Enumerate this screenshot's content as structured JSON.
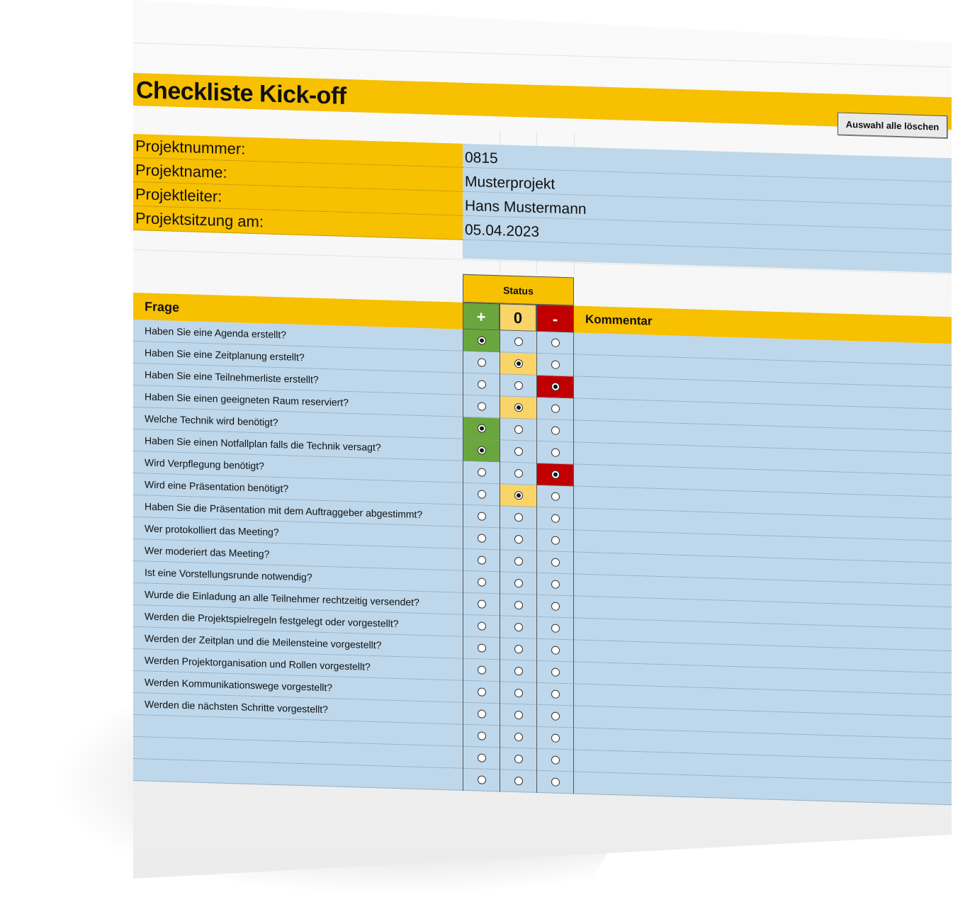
{
  "title": "Checkliste Kick-off",
  "clear_button": "Auswahl alle löschen",
  "project_info": [
    {
      "label": "Projektnummer:",
      "value": "0815"
    },
    {
      "label": "Projektname:",
      "value": "Musterprojekt"
    },
    {
      "label": "Projektleiter:",
      "value": "Hans Mustermann"
    },
    {
      "label": "Projektsitzung am:",
      "value": "05.04.2023"
    }
  ],
  "table": {
    "status_header": "Status",
    "question_header": "Frage",
    "comment_header": "Kommentar",
    "status_symbols": [
      "+",
      "0",
      "-"
    ]
  },
  "rows": [
    {
      "question": "Haben Sie eine Agenda erstellt?",
      "selected": 0,
      "comment": ""
    },
    {
      "question": "Haben Sie eine Zeitplanung erstellt?",
      "selected": 1,
      "comment": ""
    },
    {
      "question": "Haben Sie eine Teilnehmerliste erstellt?",
      "selected": 2,
      "comment": ""
    },
    {
      "question": "Haben Sie einen geeigneten Raum reserviert?",
      "selected": 1,
      "comment": ""
    },
    {
      "question": "Welche Technik wird benötigt?",
      "selected": 0,
      "comment": ""
    },
    {
      "question": "Haben Sie einen Notfallplan falls die Technik versagt?",
      "selected": 0,
      "comment": ""
    },
    {
      "question": "Wird Verpflegung benötigt?",
      "selected": 2,
      "comment": ""
    },
    {
      "question": "Wird eine Präsentation benötigt?",
      "selected": 1,
      "comment": ""
    },
    {
      "question": "Haben Sie die Präsentation mit dem Auftraggeber abgestimmt?",
      "selected": null,
      "comment": ""
    },
    {
      "question": "Wer protokolliert das Meeting?",
      "selected": null,
      "comment": ""
    },
    {
      "question": "Wer moderiert das Meeting?",
      "selected": null,
      "comment": ""
    },
    {
      "question": "Ist eine Vorstellungsrunde notwendig?",
      "selected": null,
      "comment": ""
    },
    {
      "question": "Wurde die Einladung an alle Teilnehmer rechtzeitig versendet?",
      "selected": null,
      "comment": ""
    },
    {
      "question": "Werden die Projektspielregeln festgelegt oder vorgestellt?",
      "selected": null,
      "comment": ""
    },
    {
      "question": "Werden der Zeitplan und die Meilensteine vorgestellt?",
      "selected": null,
      "comment": ""
    },
    {
      "question": "Werden Projektorganisation und Rollen vorgestellt?",
      "selected": null,
      "comment": ""
    },
    {
      "question": "Werden Kommunikationswege vorgestellt?",
      "selected": null,
      "comment": ""
    },
    {
      "question": "Werden die nächsten Schritte vorgestellt?",
      "selected": null,
      "comment": ""
    },
    {
      "question": "",
      "selected": null,
      "comment": ""
    },
    {
      "question": "",
      "selected": null,
      "comment": ""
    },
    {
      "question": "",
      "selected": null,
      "comment": ""
    }
  ],
  "colors": {
    "accent": "#f7c000",
    "cell_blue": "#bed7ea",
    "plus_green": "#6aa63e",
    "zero_yellow": "#f9d468",
    "minus_red": "#c00000"
  }
}
